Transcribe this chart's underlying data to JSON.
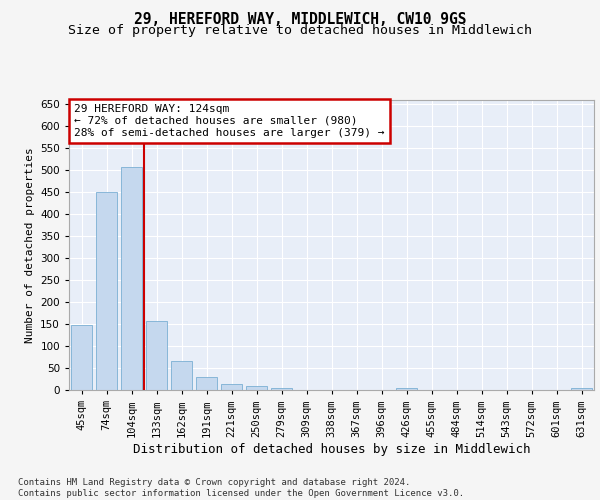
{
  "title1": "29, HEREFORD WAY, MIDDLEWICH, CW10 9GS",
  "title2": "Size of property relative to detached houses in Middlewich",
  "xlabel": "Distribution of detached houses by size in Middlewich",
  "ylabel": "Number of detached properties",
  "categories": [
    "45sqm",
    "74sqm",
    "104sqm",
    "133sqm",
    "162sqm",
    "191sqm",
    "221sqm",
    "250sqm",
    "279sqm",
    "309sqm",
    "338sqm",
    "367sqm",
    "396sqm",
    "426sqm",
    "455sqm",
    "484sqm",
    "514sqm",
    "543sqm",
    "572sqm",
    "601sqm",
    "631sqm"
  ],
  "values": [
    148,
    450,
    507,
    158,
    65,
    30,
    13,
    8,
    5,
    0,
    0,
    0,
    0,
    5,
    0,
    0,
    0,
    0,
    0,
    0,
    5
  ],
  "bar_color": "#c5d8ee",
  "bar_edge_color": "#7bafd4",
  "vline_x": 2.5,
  "vline_color": "#cc0000",
  "annotation_text": "29 HEREFORD WAY: 124sqm\n← 72% of detached houses are smaller (980)\n28% of semi-detached houses are larger (379) →",
  "annotation_box_color": "#ffffff",
  "annotation_box_edge": "#cc0000",
  "footer": "Contains HM Land Registry data © Crown copyright and database right 2024.\nContains public sector information licensed under the Open Government Licence v3.0.",
  "ylim": [
    0,
    660
  ],
  "yticks": [
    0,
    50,
    100,
    150,
    200,
    250,
    300,
    350,
    400,
    450,
    500,
    550,
    600,
    650
  ],
  "bg_color": "#e8eef8",
  "grid_color": "#ffffff",
  "title1_fontsize": 10.5,
  "title2_fontsize": 9.5,
  "xlabel_fontsize": 9,
  "ylabel_fontsize": 8,
  "tick_fontsize": 7.5,
  "annot_fontsize": 8,
  "footer_fontsize": 6.5
}
